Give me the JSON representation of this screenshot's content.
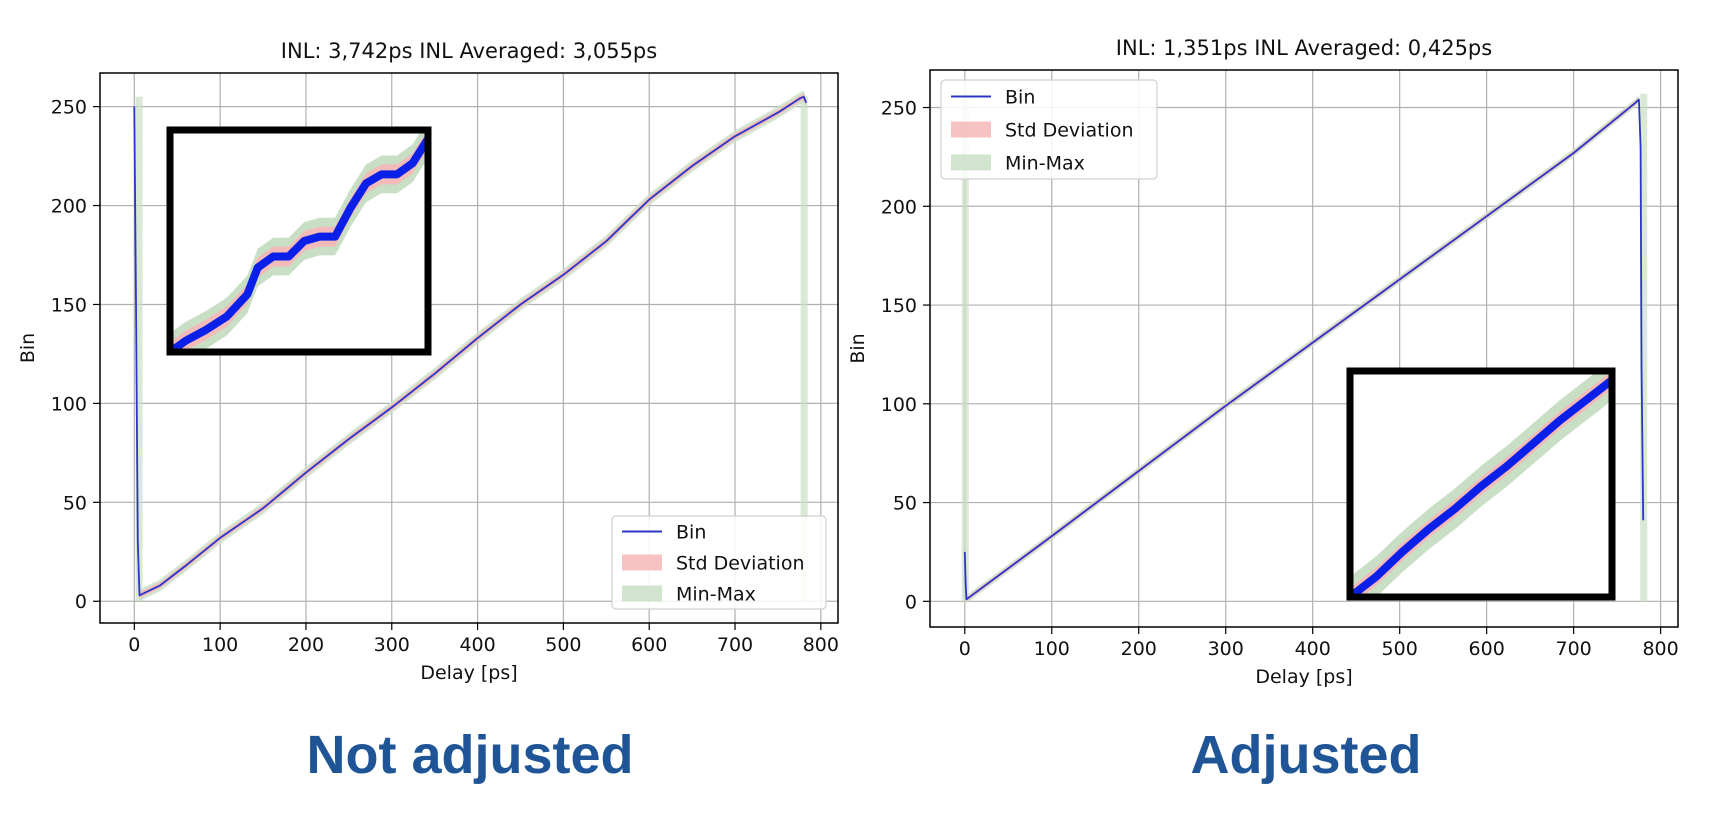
{
  "chart_data": [
    {
      "type": "line",
      "title": "INL: 3,742ps INL Averaged: 3,055ps",
      "xlabel": "Delay [ps]",
      "ylabel": "Bin",
      "xlim": [
        -40,
        820
      ],
      "ylim": [
        -11,
        267
      ],
      "xticks": [
        0,
        100,
        200,
        300,
        400,
        500,
        600,
        700,
        800
      ],
      "yticks": [
        0,
        50,
        100,
        150,
        200,
        250
      ],
      "grid": true,
      "legend_position": "lower-right",
      "series": [
        {
          "name": "Bin",
          "kind": "line",
          "color": "#2b35c7",
          "x": [
            0,
            2,
            4,
            6,
            30,
            60,
            100,
            150,
            200,
            250,
            300,
            350,
            400,
            450,
            500,
            550,
            600,
            650,
            700,
            750,
            775,
            780,
            783
          ],
          "y": [
            250,
            150,
            30,
            3,
            8,
            18,
            32,
            47,
            65,
            82,
            98,
            115,
            133,
            150,
            165,
            182,
            203,
            220,
            235,
            247,
            254,
            255,
            252
          ]
        },
        {
          "name": "Std Deviation",
          "kind": "band",
          "color": "#f4b7b7",
          "halfwidth": 1.5
        },
        {
          "name": "Min-Max",
          "kind": "band",
          "color": "#c9dfc5",
          "halfwidth": 3,
          "spikes_x": [
            5,
            780
          ]
        }
      ],
      "inset": {
        "placement": "upper-left",
        "values": [
          [
            0,
            0.0
          ],
          [
            0.06,
            0.05
          ],
          [
            0.14,
            0.1
          ],
          [
            0.22,
            0.16
          ],
          [
            0.3,
            0.26
          ],
          [
            0.34,
            0.38
          ],
          [
            0.4,
            0.43
          ],
          [
            0.46,
            0.43
          ],
          [
            0.52,
            0.5
          ],
          [
            0.58,
            0.52
          ],
          [
            0.64,
            0.52
          ],
          [
            0.7,
            0.65
          ],
          [
            0.76,
            0.76
          ],
          [
            0.82,
            0.8
          ],
          [
            0.88,
            0.8
          ],
          [
            0.94,
            0.85
          ],
          [
            1.0,
            0.96
          ]
        ],
        "band_halfwidth": 0.045,
        "green_halfwidth": 0.085
      }
    },
    {
      "type": "line",
      "title": "INL: 1,351ps INL Averaged: 0,425ps",
      "xlabel": "Delay [ps]",
      "ylabel": "Bin",
      "xlim": [
        -40,
        820
      ],
      "ylim": [
        -13,
        269
      ],
      "xticks": [
        0,
        100,
        200,
        300,
        400,
        500,
        600,
        700,
        800
      ],
      "yticks": [
        0,
        50,
        100,
        150,
        200,
        250
      ],
      "grid": true,
      "legend_position": "upper-left",
      "series": [
        {
          "name": "Bin",
          "kind": "line",
          "color": "#2b35c7",
          "x": [
            0,
            1,
            2,
            100,
            200,
            300,
            400,
            500,
            600,
            700,
            770,
            775,
            777,
            778,
            780
          ],
          "y": [
            25,
            8,
            1,
            33,
            66,
            99,
            131,
            163,
            195,
            227,
            252,
            254,
            230,
            120,
            41
          ]
        },
        {
          "name": "Std Deviation",
          "kind": "band",
          "color": "#f4b7b7",
          "halfwidth": 1
        },
        {
          "name": "Min-Max",
          "kind": "band",
          "color": "#c9dfc5",
          "halfwidth": 2,
          "spikes_x": [
            0,
            780
          ]
        }
      ],
      "inset": {
        "placement": "lower-right",
        "values": [
          [
            0,
            0.0
          ],
          [
            0.1,
            0.09
          ],
          [
            0.2,
            0.2
          ],
          [
            0.3,
            0.3
          ],
          [
            0.4,
            0.39
          ],
          [
            0.5,
            0.49
          ],
          [
            0.6,
            0.58
          ],
          [
            0.7,
            0.68
          ],
          [
            0.8,
            0.78
          ],
          [
            0.9,
            0.87
          ],
          [
            1.0,
            0.96
          ]
        ],
        "band_halfwidth": 0.04,
        "green_halfwidth": 0.09
      }
    }
  ],
  "captions": {
    "left": "Not adjusted",
    "right": "Adjusted"
  },
  "colors": {
    "line": "#2b35c7",
    "inset_line": "#0a1fe8",
    "std_band": "#f4b7b7",
    "minmax_band": "#c9dfc5",
    "caption": "#1f5596",
    "grid": "#b0b0b0"
  }
}
